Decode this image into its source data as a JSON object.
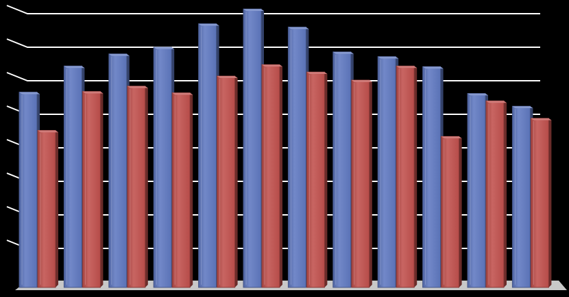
{
  "chart_data": {
    "type": "bar",
    "categories": [
      "",
      "",
      "",
      "",
      "",
      "",
      "",
      "",
      "",
      "",
      "",
      ""
    ],
    "series": [
      {
        "values": [
          28.3,
          32.2,
          34.0,
          35.0,
          38.5,
          40.7,
          38.0,
          34.3,
          33.6,
          32.1,
          28.1,
          26.2
        ]
      },
      {
        "values": [
          22.6,
          28.4,
          29.2,
          28.2,
          30.7,
          32.4,
          31.3,
          30.1,
          32.2,
          21.7,
          27.0,
          24.4
        ]
      }
    ],
    "ylim": [
      0,
      40
    ],
    "grid": true,
    "legend": "none",
    "three_d": true,
    "colors": {
      "background": "#000000",
      "grid": "#ffffff",
      "floor": "#c8c8c8",
      "series": [
        "#5f78c0",
        "#c0504d"
      ]
    }
  }
}
